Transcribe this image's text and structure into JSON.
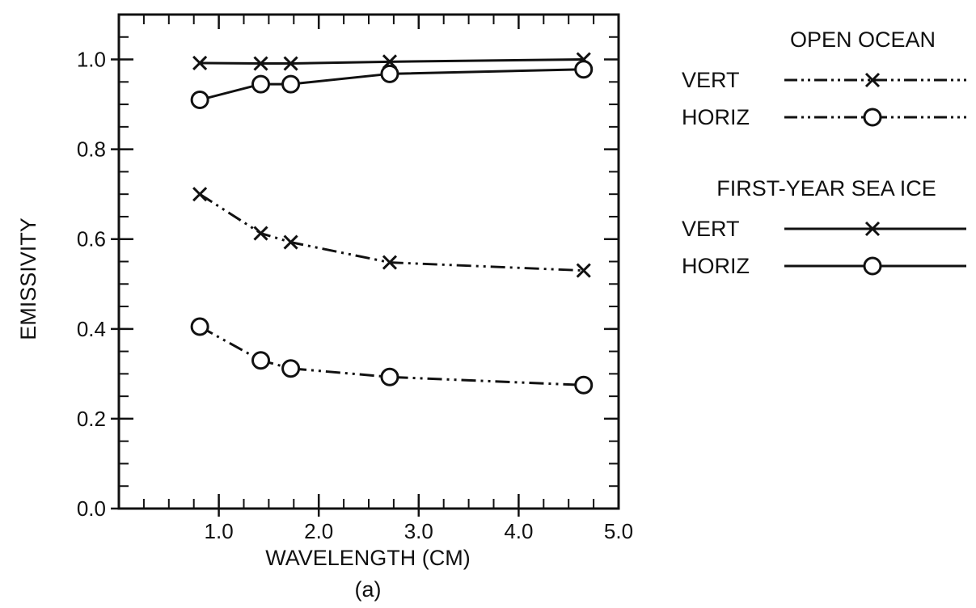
{
  "chart_data": {
    "type": "line",
    "xlabel": "WAVELENGTH (CM)",
    "ylabel": "EMISSIVITY",
    "caption": "(a)",
    "xlim": [
      0,
      5.0
    ],
    "ylim": [
      0,
      1.1
    ],
    "x_ticks": [
      1.0,
      2.0,
      3.0,
      4.0,
      5.0
    ],
    "x_tick_labels": [
      "1.0",
      "2.0",
      "3.0",
      "4.0",
      "5.0"
    ],
    "y_ticks": [
      0.0,
      0.2,
      0.4,
      0.6,
      0.8,
      1.0
    ],
    "y_tick_labels": [
      "0.0",
      "0.2",
      "0.4",
      "0.6",
      "0.8",
      "1.0"
    ],
    "x_minor_step": 0.25,
    "y_minor_step": 0.05,
    "grid": false,
    "legend_position": "right",
    "legend_groups": [
      {
        "title": "OPEN OCEAN",
        "entries": [
          {
            "label": "VERT",
            "series": 2
          },
          {
            "label": "HORIZ",
            "series": 3
          }
        ]
      },
      {
        "title": "FIRST-YEAR SEA ICE",
        "entries": [
          {
            "label": "VERT",
            "series": 0
          },
          {
            "label": "HORIZ",
            "series": 1
          }
        ]
      }
    ],
    "series": [
      {
        "group": "FIRST-YEAR SEA ICE",
        "label": "VERT",
        "marker": "x",
        "line": "solid",
        "x": [
          0.81,
          1.42,
          1.72,
          2.71,
          4.65
        ],
        "y": [
          0.992,
          0.991,
          0.991,
          0.995,
          1.0
        ]
      },
      {
        "group": "FIRST-YEAR SEA ICE",
        "label": "HORIZ",
        "marker": "o",
        "line": "solid",
        "x": [
          0.81,
          1.42,
          1.72,
          2.71,
          4.65
        ],
        "y": [
          0.91,
          0.945,
          0.945,
          0.968,
          0.978
        ]
      },
      {
        "group": "OPEN OCEAN",
        "label": "VERT",
        "marker": "x",
        "line": "dash-dot-dot",
        "x": [
          0.81,
          1.42,
          1.72,
          2.71,
          4.65
        ],
        "y": [
          0.7,
          0.613,
          0.593,
          0.548,
          0.53
        ]
      },
      {
        "group": "OPEN OCEAN",
        "label": "HORIZ",
        "marker": "o",
        "line": "dash-dot-dot",
        "x": [
          0.81,
          1.42,
          1.72,
          2.71,
          4.65
        ],
        "y": [
          0.405,
          0.33,
          0.312,
          0.293,
          0.275
        ]
      }
    ]
  }
}
